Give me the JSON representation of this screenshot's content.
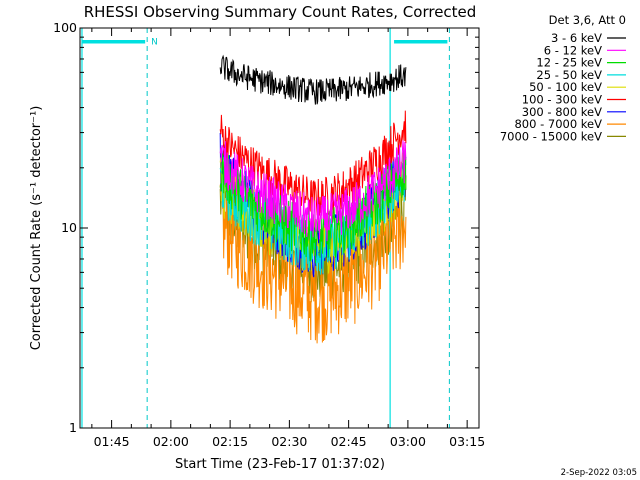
{
  "chart_data": {
    "type": "line",
    "title": "RHESSI Observing Summary Count Rates, Corrected",
    "xlabel": "Start Time (23-Feb-17 01:37:02)",
    "ylabel": "Corrected Count Rate (s⁻¹ detector⁻¹)",
    "yscale": "log",
    "ylim": [
      1,
      100
    ],
    "xlim_minutes": [
      97,
      198
    ],
    "x_ticks": [
      {
        "minute": 105,
        "label": "01:45"
      },
      {
        "minute": 120,
        "label": "02:00"
      },
      {
        "minute": 135,
        "label": "02:15"
      },
      {
        "minute": 150,
        "label": "02:30"
      },
      {
        "minute": 165,
        "label": "02:45"
      },
      {
        "minute": 180,
        "label": "03:00"
      },
      {
        "minute": 195,
        "label": "03:15"
      }
    ],
    "y_ticks": [
      {
        "value": 1,
        "label": "1"
      },
      {
        "value": 10,
        "label": "10"
      },
      {
        "value": 100,
        "label": "100"
      }
    ],
    "legend": {
      "header": "Det 3,6, Att 0",
      "placement": "right"
    },
    "markers": {
      "solid_lines_min": [
        97.5,
        175.5
      ],
      "dashed_lines_min": [
        114,
        190.5
      ],
      "night_bars_min": [
        [
          97.5,
          113.5
        ],
        [
          176.5,
          190
        ]
      ],
      "night_label": "N"
    },
    "data_window_min": [
      132.5,
      179.5
    ],
    "series": [
      {
        "name": "3 - 6 keV",
        "color": "#000000",
        "start": 66,
        "mid": 48,
        "end": 58,
        "noise": 0.05
      },
      {
        "name": "6 - 12 keV",
        "color": "#ff00ff",
        "start": 24,
        "mid": 11,
        "end": 22,
        "noise": 0.09
      },
      {
        "name": "12 - 25 keV",
        "color": "#00dd00",
        "start": 21,
        "mid": 9,
        "end": 20,
        "noise": 0.1
      },
      {
        "name": "25 - 50 keV",
        "color": "#00dddd",
        "start": 18,
        "mid": 8,
        "end": 19,
        "noise": 0.11
      },
      {
        "name": "50 - 100 keV",
        "color": "#dddd00",
        "start": 17,
        "mid": 8,
        "end": 18,
        "noise": 0.11
      },
      {
        "name": "100 - 300 keV",
        "color": "#ff0000",
        "start": 32,
        "mid": 14,
        "end": 33,
        "noise": 0.08
      },
      {
        "name": "300 - 800 keV",
        "color": "#0000ff",
        "start": 22,
        "mid": 8,
        "end": 20,
        "noise": 0.12
      },
      {
        "name": "800 - 7000 keV",
        "color": "#ff8800",
        "start": 12,
        "mid": 4.5,
        "end": 11,
        "noise": 0.18
      },
      {
        "name": "7000 - 15000 keV",
        "color": "#888800",
        "start": 14,
        "mid": 6,
        "end": 13,
        "noise": 0.12
      }
    ]
  },
  "footer": {
    "timestamp": "2-Sep-2022 03:05"
  }
}
